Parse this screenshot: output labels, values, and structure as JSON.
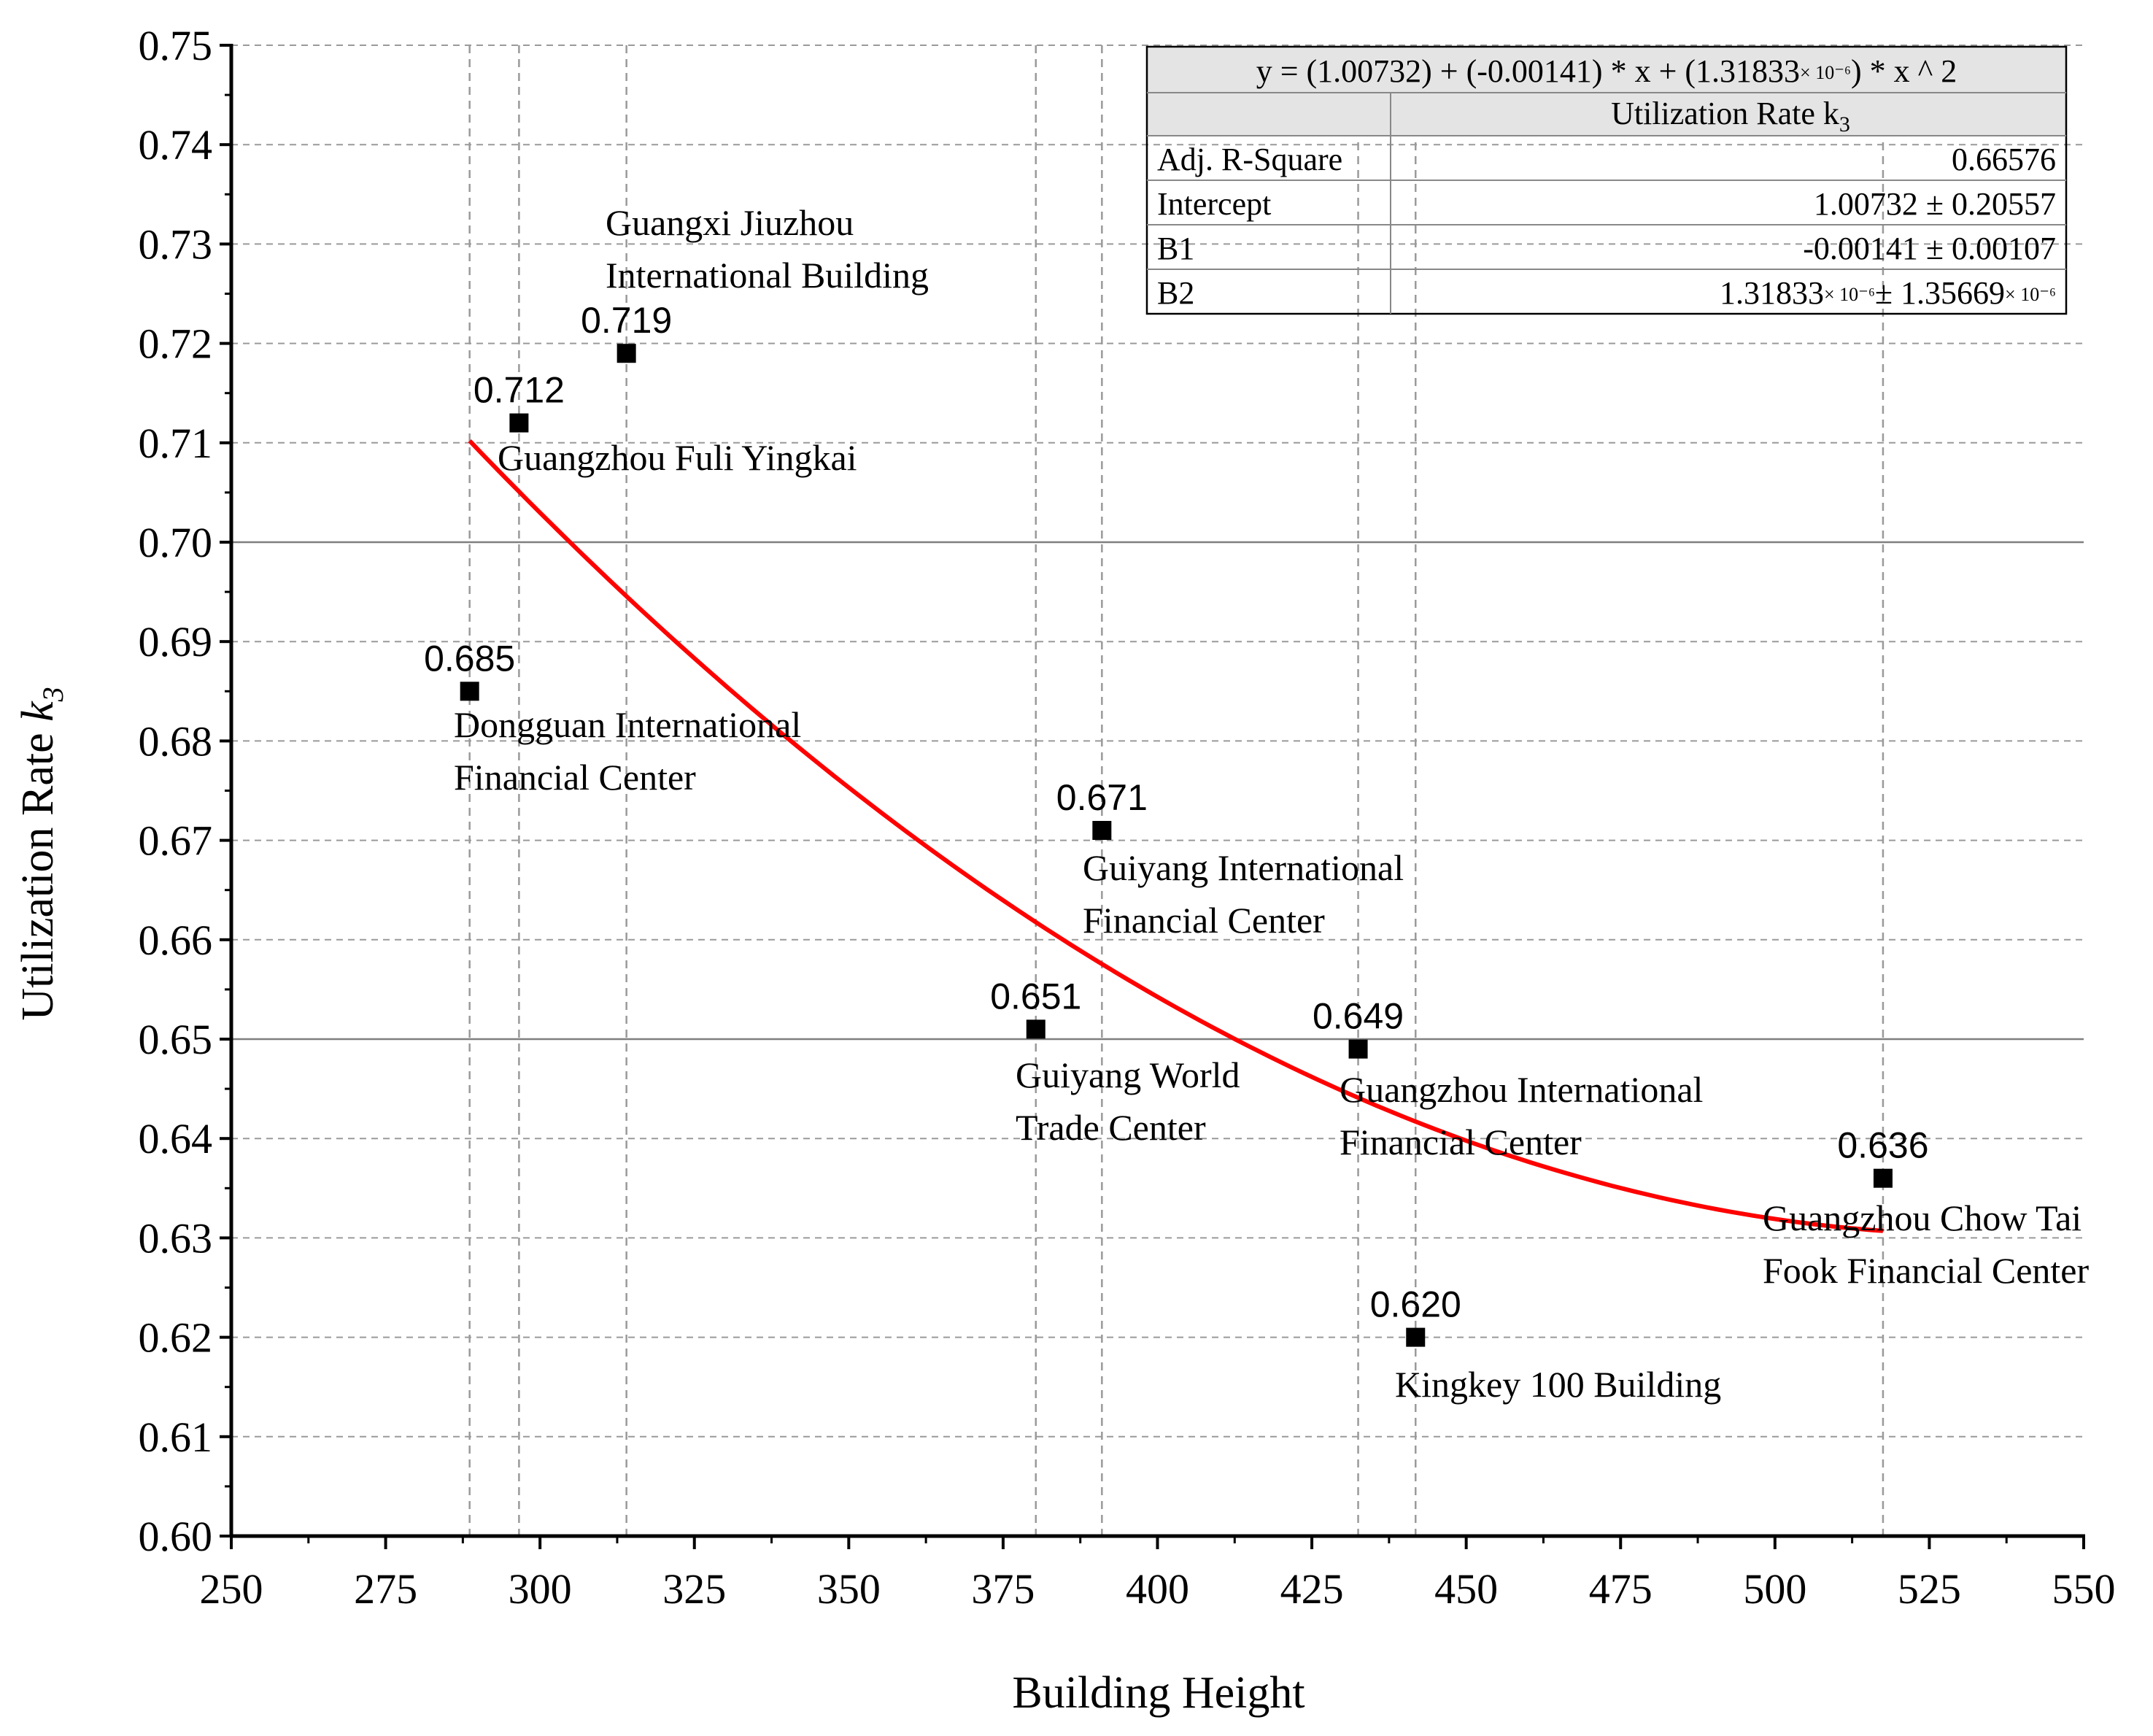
{
  "chart_data": {
    "type": "scatter",
    "xlabel": "Building Height",
    "ylabel_main": "Utilization Rate ",
    "ylabel_italic": "k",
    "ylabel_sub": "3",
    "xlim": [
      250,
      550
    ],
    "ylim": [
      0.6,
      0.75
    ],
    "x_ticks": [
      "250",
      "275",
      "300",
      "325",
      "350",
      "375",
      "400",
      "425",
      "450",
      "475",
      "500",
      "525",
      "550"
    ],
    "y_ticks": [
      "0.60",
      "0.61",
      "0.62",
      "0.63",
      "0.64",
      "0.65",
      "0.66",
      "0.67",
      "0.68",
      "0.69",
      "0.70",
      "0.71",
      "0.72",
      "0.73",
      "0.74",
      "0.75"
    ],
    "reference_lines_y": [
      0.65,
      0.7
    ],
    "points": [
      {
        "x": 288.6,
        "y": 0.685,
        "value_label": "0.685",
        "name_lines": [
          "Dongguan International",
          "Financial Center"
        ]
      },
      {
        "x": 296.6,
        "y": 0.712,
        "value_label": "0.712",
        "name_lines": [
          "Guangzhou Fuli Yingkai"
        ]
      },
      {
        "x": 314.0,
        "y": 0.719,
        "value_label": "0.719",
        "name_lines": [
          "Guangxi Jiuzhou",
          "International Building"
        ]
      },
      {
        "x": 380.3,
        "y": 0.651,
        "value_label": "0.651",
        "name_lines": [
          "Guiyang World",
          "Trade Center"
        ]
      },
      {
        "x": 391.0,
        "y": 0.671,
        "value_label": "0.671",
        "name_lines": [
          "Guiyang International",
          "Financial Center"
        ]
      },
      {
        "x": 432.5,
        "y": 0.649,
        "value_label": "0.649",
        "name_lines": [
          "Guangzhou International",
          "Financial Center"
        ]
      },
      {
        "x": 441.8,
        "y": 0.62,
        "value_label": "0.620",
        "name_lines": [
          "Kingkey 100 Building"
        ]
      },
      {
        "x": 517.5,
        "y": 0.636,
        "value_label": "0.636",
        "name_lines": [
          "Guangzhou Chow Tai",
          "Fook Financial Center"
        ]
      }
    ],
    "fit": {
      "intercept": 1.00732,
      "b1": -0.00141,
      "b2": 1.31833e-06,
      "x_range": [
        288.6,
        517.5
      ],
      "color": "#ff0000"
    },
    "stats_table": {
      "equation_pre": "y =  (1.00732) + (-0.00141) * x + (1.31833",
      "equation_exp": "× 10⁻⁶",
      "equation_post": ") * x ^ 2",
      "header_main": "Utilization Rate k",
      "header_sub": "3",
      "rows": [
        {
          "label": "Adj. R-Square",
          "value": "0.66576",
          "exp": ""
        },
        {
          "label": "Intercept",
          "value": "1.00732 ± 0.20557",
          "exp": ""
        },
        {
          "label": "B1",
          "value": "-0.00141 ± 0.00107",
          "exp": ""
        }
      ],
      "b2_label": "B2",
      "b2_value_a": "1.31833",
      "b2_exp_a": "× 10⁻⁶",
      "b2_value_b": "± 1.35669",
      "b2_exp_b": "× 10⁻⁶"
    },
    "colors": {
      "fit_line": "#ff0000",
      "marker": "#000000",
      "grid": "#9a9a9a",
      "ref_line": "#7f7f7f",
      "table_header_bg": "#e4e4e4"
    }
  }
}
